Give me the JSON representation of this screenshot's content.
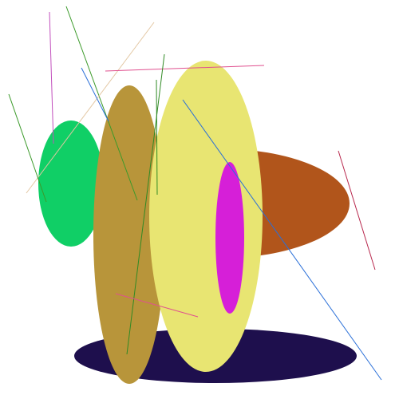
{
  "colors": {
    "background": "#ffffff",
    "navy": "#1e0f4d",
    "rust": "#b1551b",
    "green": "#10cf66",
    "khaki": "#b8953a",
    "pale_yellow": "#e8e572",
    "magenta": "#d61fd8",
    "line_magenta": "#c24fbd",
    "line_green": "#3b9a2a",
    "line_tan": "#e3c7a3",
    "line_blue": "#2a6fd8",
    "line_red": "#b8284d",
    "line_pink": "#e0508f",
    "line_darkgreen": "#2f8a24"
  }
}
